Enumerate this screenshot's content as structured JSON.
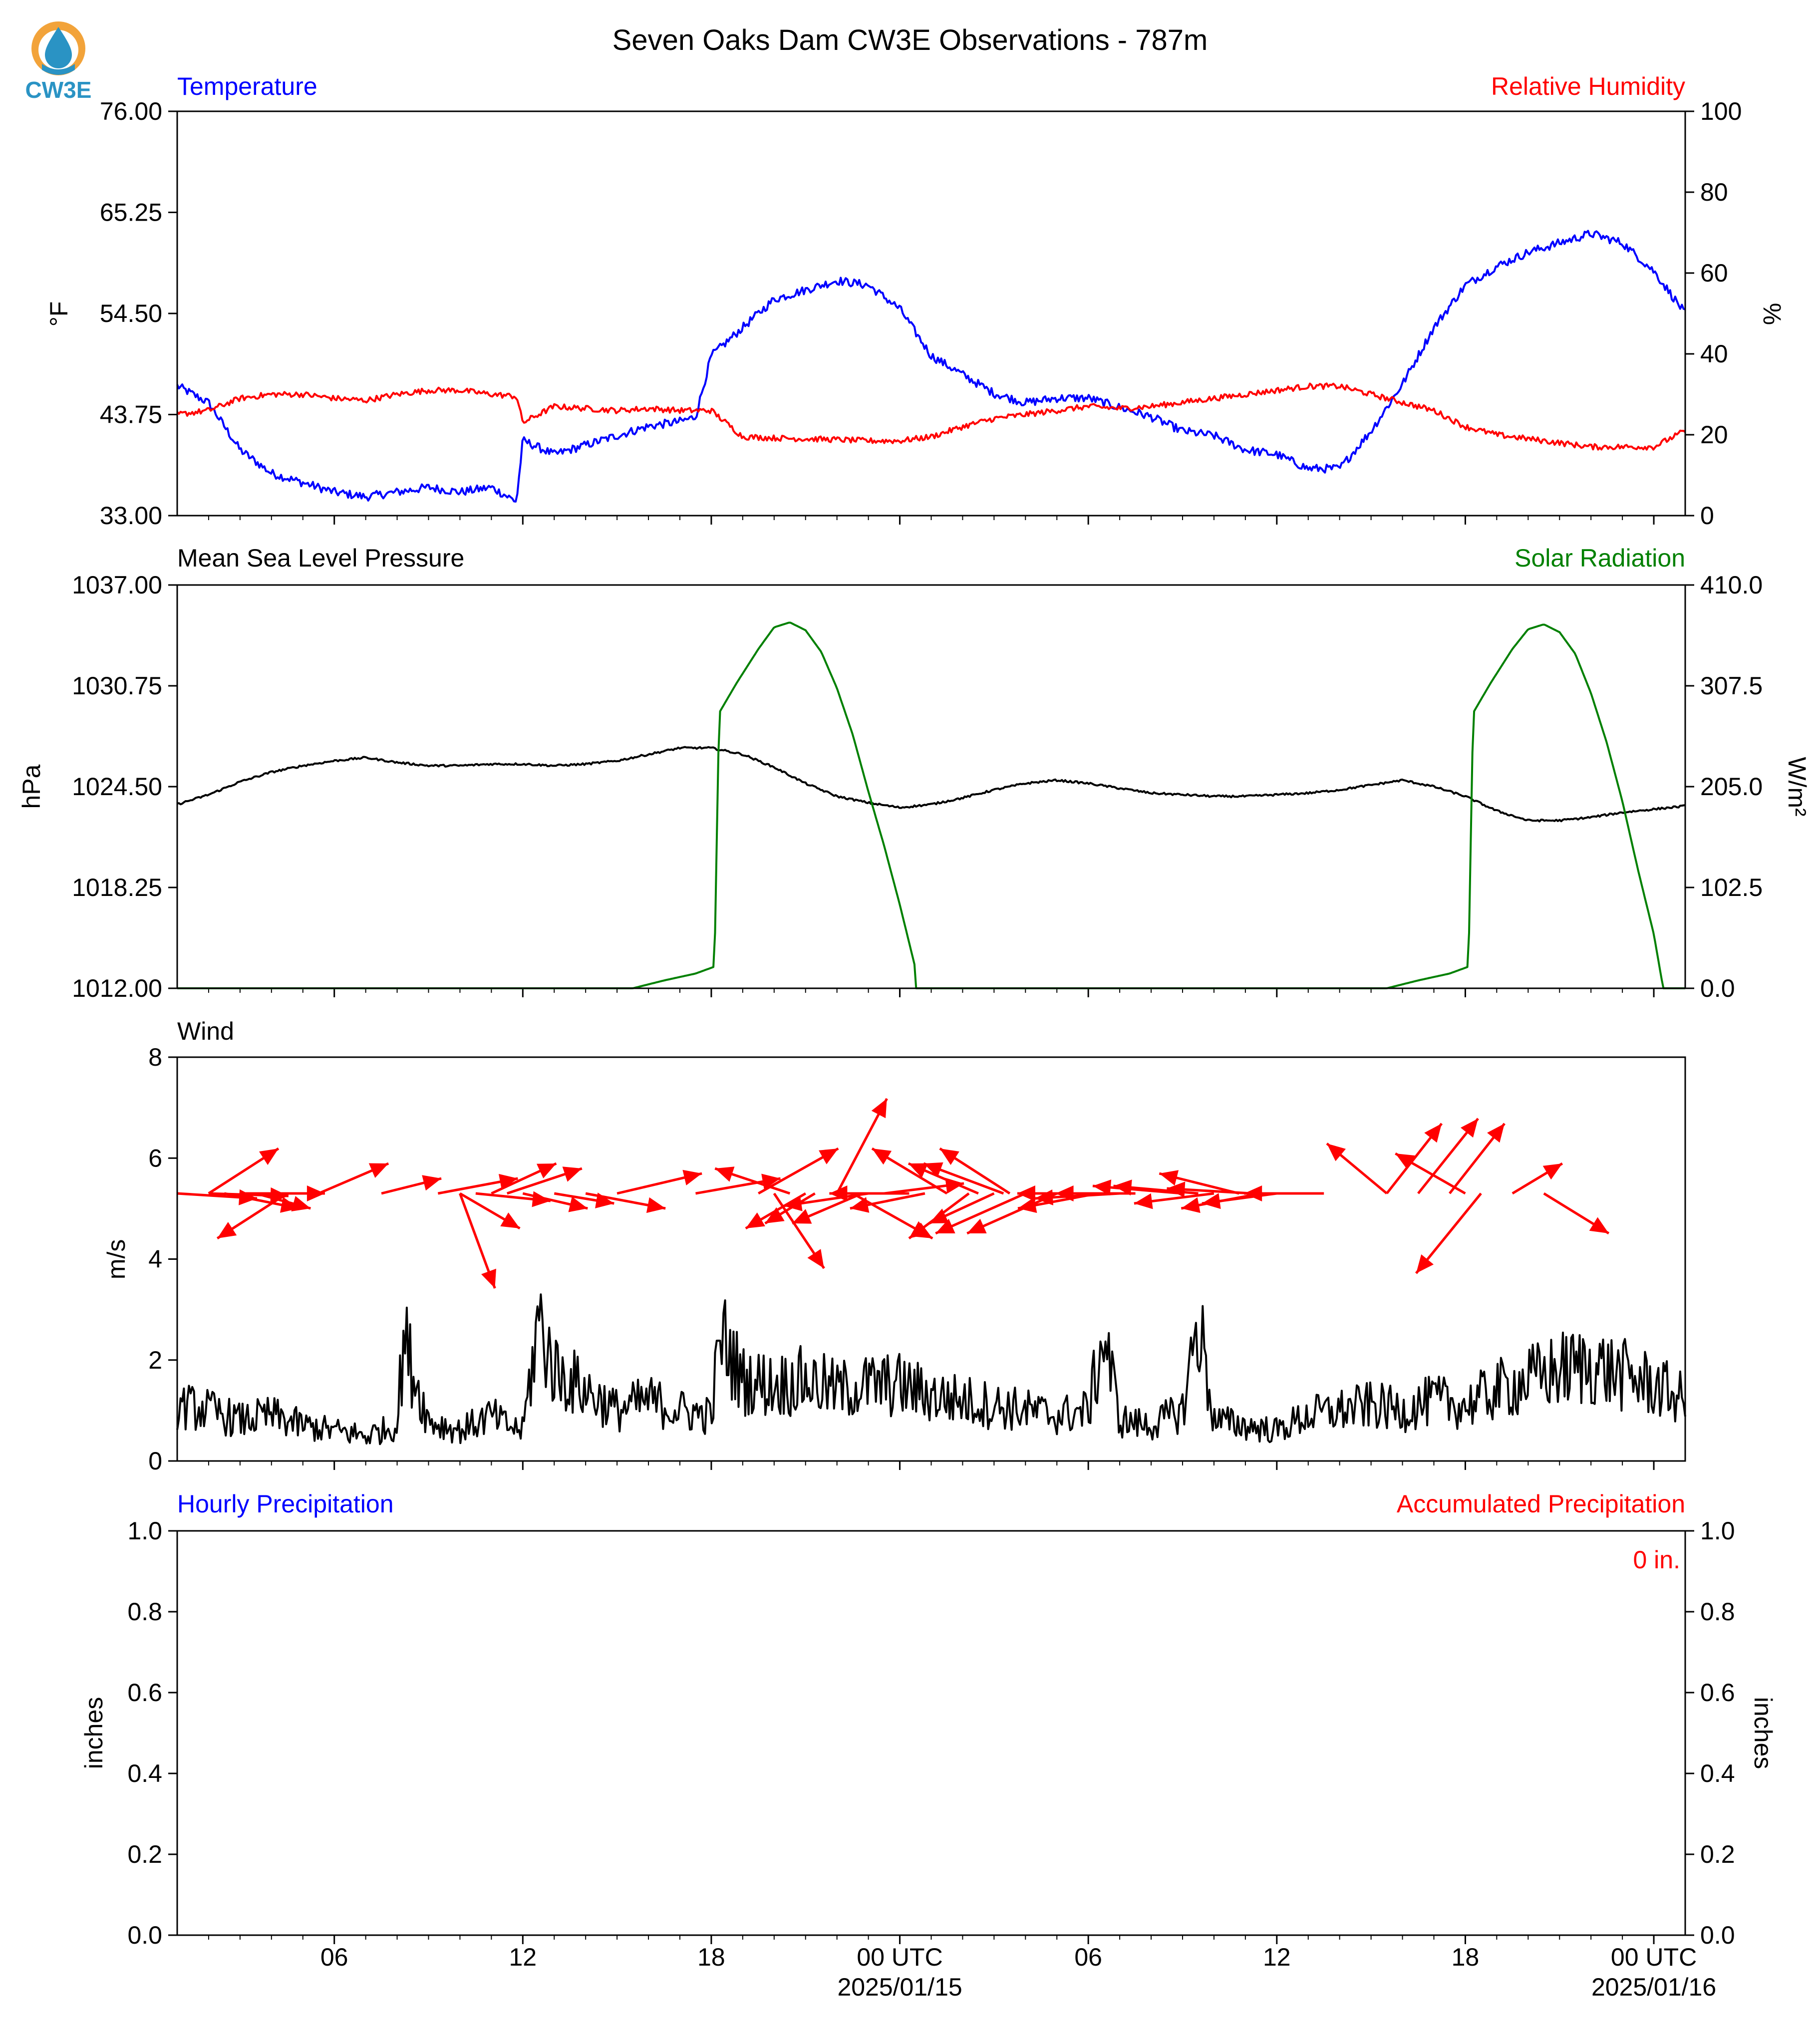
{
  "title": "Seven Oaks Dam CW3E Observations - 787m",
  "logo": {
    "icon": "cw3e-droplet-logo-icon",
    "text": "CW3E",
    "ring_color": "#f2a33a",
    "drop_color": "#2a93c4"
  },
  "colors": {
    "temperature": "#0000ff",
    "humidity": "#ff0000",
    "pressure": "#000000",
    "solar": "#008000",
    "wind": "#ff0000",
    "wind_speed": "#000000",
    "hourly_precip": "#0000ff",
    "accum_precip": "#ff0000"
  },
  "time_axis": {
    "start_hour": 0,
    "end_hour": 48,
    "tick_step_hours": 1,
    "labels": [
      {
        "hour": 5,
        "text": "06"
      },
      {
        "hour": 11,
        "text": "12"
      },
      {
        "hour": 17,
        "text": "18"
      },
      {
        "hour": 23,
        "text": "00 UTC",
        "date": "2025/01/15"
      },
      {
        "hour": 29,
        "text": "06"
      },
      {
        "hour": 35,
        "text": "12"
      },
      {
        "hour": 41,
        "text": "18"
      },
      {
        "hour": 47,
        "text": "00 UTC",
        "date": "2025/01/16"
      }
    ]
  },
  "chart_data": [
    {
      "type": "line",
      "left_title": "Temperature",
      "right_title": "Relative Humidity",
      "ylabel": "°F",
      "ylabel_right": "%",
      "ylim": [
        33,
        76
      ],
      "yticks": [
        "33.00",
        "43.75",
        "54.50",
        "65.25",
        "76.00"
      ],
      "ylim_right": [
        0,
        100
      ],
      "yticks_right": [
        "0",
        "20",
        "40",
        "60",
        "80",
        "100"
      ],
      "series": [
        {
          "name": "Temperature",
          "axis": "left",
          "color": "#0000ff",
          "x": [
            0,
            1,
            2,
            3,
            4,
            5,
            6,
            7,
            8,
            9,
            10,
            10.8,
            11,
            12,
            13,
            14,
            15,
            16,
            16.5,
            17,
            18,
            19,
            20,
            21,
            22,
            23,
            24,
            25,
            26,
            27,
            28,
            29,
            30,
            31,
            32,
            33,
            34,
            35,
            36,
            37,
            38,
            39,
            40,
            41,
            42,
            43,
            44,
            45,
            46,
            47,
            48
          ],
          "y": [
            46.8,
            45,
            40,
            37.5,
            36.5,
            35.5,
            35,
            35.5,
            36,
            35.5,
            36,
            34.5,
            41,
            39.5,
            40.5,
            41.5,
            42.5,
            43,
            43.5,
            50,
            53,
            56,
            57,
            58,
            57.5,
            55,
            50,
            48,
            46,
            45,
            45.5,
            45.5,
            44.5,
            43.5,
            42,
            41.5,
            40,
            39.5,
            38,
            38,
            42,
            47,
            53,
            57.5,
            59.5,
            61,
            62,
            63,
            62,
            59,
            54.5
          ]
        },
        {
          "name": "Relative Humidity",
          "axis": "right",
          "color": "#ff0000",
          "x": [
            0,
            1,
            2,
            3,
            4,
            5,
            6,
            7,
            8,
            9,
            10,
            10.8,
            11,
            12,
            13,
            14,
            15,
            16,
            17,
            18,
            19,
            20,
            21,
            22,
            23,
            24,
            25,
            26,
            27,
            28,
            29,
            30,
            31,
            32,
            33,
            34,
            35,
            36,
            37,
            38,
            39,
            40,
            41,
            42,
            43,
            44,
            45,
            46,
            47,
            48
          ],
          "y": [
            25,
            26,
            29,
            30,
            30,
            29,
            28.5,
            30,
            31,
            31,
            30,
            29.5,
            23,
            27,
            26.5,
            26,
            26.5,
            26,
            26,
            19.5,
            19.2,
            19,
            18.8,
            18.5,
            18.5,
            19.5,
            22,
            24,
            25,
            26,
            27,
            26.5,
            27,
            28,
            29,
            30,
            31,
            32,
            32,
            30,
            28,
            26,
            22,
            20,
            19,
            18,
            17,
            17,
            17,
            21
          ]
        }
      ]
    },
    {
      "type": "line",
      "left_title": "Mean Sea Level Pressure",
      "right_title": "Solar Radiation",
      "ylabel": "hPa",
      "ylabel_right": "W/m²",
      "ylim": [
        1012,
        1037
      ],
      "yticks": [
        "1012.00",
        "1018.25",
        "1024.50",
        "1030.75",
        "1037.00"
      ],
      "ylim_right": [
        0,
        410
      ],
      "yticks_right": [
        "0.0",
        "102.5",
        "205.0",
        "307.5",
        "410.0"
      ],
      "series": [
        {
          "name": "Mean Sea Level Pressure",
          "axis": "left",
          "color": "#000000",
          "x": [
            0,
            1,
            2,
            3,
            4,
            5,
            6,
            7,
            8,
            9,
            10,
            11,
            12,
            13,
            14,
            15,
            16,
            17,
            18,
            19,
            20,
            21,
            22,
            23,
            24,
            25,
            26,
            27,
            28,
            29,
            30,
            31,
            32,
            33,
            34,
            35,
            36,
            37,
            38,
            39,
            40,
            41,
            42,
            43,
            44,
            45,
            46,
            47,
            48
          ],
          "y": [
            1023.4,
            1024,
            1024.8,
            1025.4,
            1025.8,
            1026.1,
            1026.3,
            1026.0,
            1025.8,
            1025.8,
            1025.9,
            1025.9,
            1025.8,
            1025.9,
            1026.1,
            1026.5,
            1026.9,
            1026.9,
            1026.5,
            1025.7,
            1024.7,
            1023.9,
            1023.5,
            1023.2,
            1023.4,
            1023.8,
            1024.3,
            1024.7,
            1024.9,
            1024.7,
            1024.4,
            1024.1,
            1024.0,
            1023.9,
            1023.9,
            1024.0,
            1024.1,
            1024.3,
            1024.6,
            1024.9,
            1024.5,
            1023.9,
            1023.0,
            1022.4,
            1022.4,
            1022.6,
            1022.9,
            1023.1,
            1023.3
          ]
        },
        {
          "name": "Solar Radiation",
          "axis": "right",
          "color": "#008000",
          "x": [
            0,
            14.5,
            15.5,
            16.5,
            17.1,
            17.25,
            17.8,
            18.5,
            19,
            19.5,
            20,
            20.5,
            21,
            21.5,
            22,
            22.5,
            23,
            23.5,
            23.5,
            24,
            38.5,
            39.5,
            40.5,
            41.1,
            41.25,
            41.8,
            42.5,
            43,
            43.5,
            44,
            44.5,
            45,
            45.5,
            46,
            46.5,
            47,
            47.3,
            47.4,
            48
          ],
          "y": [
            0,
            0,
            8,
            15,
            22,
            280,
            310,
            345,
            367,
            372,
            364,
            342,
            305,
            258,
            200,
            145,
            85,
            20,
            0,
            0,
            0,
            8,
            15,
            22,
            280,
            310,
            345,
            365,
            370,
            362,
            340,
            300,
            250,
            190,
            120,
            55,
            0,
            0,
            0
          ]
        }
      ]
    },
    {
      "type": "line",
      "left_title": "Wind",
      "ylabel": "m/s",
      "ylim": [
        0,
        8
      ],
      "yticks": [
        "0",
        "2",
        "4",
        "6",
        "8"
      ],
      "series": [
        {
          "name": "Wind speed",
          "axis": "left",
          "color": "#000000",
          "x": [
            0,
            1,
            2,
            3,
            4,
            5,
            6,
            7,
            7.2,
            8,
            9,
            10,
            10.5,
            11,
            11.5,
            12,
            13,
            14,
            15,
            16,
            17,
            17.3,
            18,
            19,
            20,
            21,
            22,
            23,
            24,
            25,
            26,
            27,
            28,
            29,
            29.5,
            30,
            31,
            32,
            32.5,
            33,
            34,
            35,
            36,
            37,
            38,
            39,
            40,
            41,
            42,
            43,
            44,
            45,
            46,
            47,
            48
          ],
          "y": [
            1.1,
            1.0,
            0.8,
            0.9,
            0.7,
            0.6,
            0.5,
            0.7,
            2.4,
            0.8,
            0.6,
            0.9,
            0.7,
            0.6,
            2.8,
            1.8,
            1.4,
            1.0,
            1.2,
            1.0,
            0.9,
            2.5,
            1.6,
            1.5,
            1.6,
            1.4,
            1.5,
            1.5,
            1.3,
            1.2,
            1.1,
            1.0,
            0.9,
            1.0,
            2.5,
            0.8,
            0.7,
            1.0,
            2.8,
            0.8,
            0.7,
            0.6,
            0.9,
            1.0,
            1.1,
            1.0,
            1.2,
            1.1,
            1.4,
            1.6,
            1.8,
            1.9,
            1.7,
            1.5,
            1.2
          ]
        }
      ],
      "wind_barbs": [
        {
          "hour": 0.0,
          "u": 1.6,
          "v": -0.1
        },
        {
          "hour": 1.0,
          "u": 1.6,
          "v": -0.05
        },
        {
          "hour": 1.0,
          "u": 1.4,
          "v": 0.9
        },
        {
          "hour": 1.5,
          "u": 1.5,
          "v": -0.3
        },
        {
          "hour": 2.0,
          "u": 1.7,
          "v": 0.0
        },
        {
          "hour": 2.5,
          "u": 1.1,
          "v": -0.3
        },
        {
          "hour": 3.5,
          "u": -1.4,
          "v": -0.9
        },
        {
          "hour": 4.5,
          "u": 1.4,
          "v": 0.6
        },
        {
          "hour": 6.5,
          "u": 1.2,
          "v": 0.3
        },
        {
          "hour": 8.3,
          "u": 1.6,
          "v": 0.3
        },
        {
          "hour": 9.5,
          "u": 1.5,
          "v": -0.15
        },
        {
          "hour": 9.0,
          "u": 0.7,
          "v": -1.9
        },
        {
          "hour": 10.0,
          "u": 1.3,
          "v": 0.6
        },
        {
          "hour": 9.0,
          "u": 1.2,
          "v": -0.7
        },
        {
          "hour": 10.5,
          "u": 1.5,
          "v": 0.5
        },
        {
          "hour": 11.0,
          "u": 1.3,
          "v": -0.3
        },
        {
          "hour": 12.0,
          "u": 1.2,
          "v": -0.2
        },
        {
          "hour": 13.0,
          "u": 1.6,
          "v": -0.3
        },
        {
          "hour": 14.0,
          "u": 1.7,
          "v": 0.4
        },
        {
          "hour": 16.5,
          "u": 1.7,
          "v": 0.3
        },
        {
          "hour": 18.5,
          "u": 1.6,
          "v": 0.9
        },
        {
          "hour": 19.0,
          "u": 1.0,
          "v": -1.5
        },
        {
          "hour": 19.5,
          "u": -1.5,
          "v": 0.5
        },
        {
          "hour": 20.0,
          "u": -1.2,
          "v": -0.7
        },
        {
          "hour": 20.3,
          "u": -1.0,
          "v": -0.6
        },
        {
          "hour": 21.0,
          "u": 1.0,
          "v": 1.9
        },
        {
          "hour": 21.5,
          "u": 1.6,
          "v": -0.9
        },
        {
          "hour": 21.8,
          "u": -1.4,
          "v": -0.6
        },
        {
          "hour": 22.0,
          "u": -1.7,
          "v": -0.25
        },
        {
          "hour": 22.5,
          "u": 1.6,
          "v": 0.2
        },
        {
          "hour": 23.3,
          "u": -1.6,
          "v": 0.0
        },
        {
          "hour": 23.8,
          "u": -1.5,
          "v": -0.3
        },
        {
          "hour": 24.5,
          "u": -1.5,
          "v": 0.9
        },
        {
          "hour": 25.2,
          "u": -1.2,
          "v": -0.9
        },
        {
          "hour": 25.5,
          "u": -1.4,
          "v": 0.6
        },
        {
          "hour": 26.0,
          "u": -1.3,
          "v": -0.6
        },
        {
          "hour": 26.3,
          "u": -1.6,
          "v": 0.6
        },
        {
          "hour": 26.5,
          "u": -1.4,
          "v": 0.9
        },
        {
          "hour": 27.0,
          "u": -1.8,
          "v": -0.8
        },
        {
          "hour": 28.0,
          "u": -1.8,
          "v": -0.8
        },
        {
          "hour": 29.3,
          "u": -1.6,
          "v": -0.3
        },
        {
          "hour": 29.6,
          "u": -1.8,
          "v": 0.0
        },
        {
          "hour": 30.0,
          "u": -1.7,
          "v": -0.1
        },
        {
          "hour": 30.5,
          "u": -1.6,
          "v": 0.0
        },
        {
          "hour": 32.0,
          "u": -1.8,
          "v": 0.15
        },
        {
          "hour": 32.5,
          "u": -1.7,
          "v": 0.15
        },
        {
          "hour": 33.0,
          "u": -1.6,
          "v": -0.2
        },
        {
          "hour": 33.8,
          "u": -1.6,
          "v": 0.4
        },
        {
          "hour": 34.2,
          "u": -1.7,
          "v": 0.1
        },
        {
          "hour": 34.5,
          "u": -1.6,
          "v": -0.3
        },
        {
          "hour": 35.0,
          "u": -1.5,
          "v": -0.2
        },
        {
          "hour": 36.5,
          "u": -1.6,
          "v": 0.0
        },
        {
          "hour": 38.5,
          "u": -1.2,
          "v": 1.0
        },
        {
          "hour": 38.5,
          "u": 1.1,
          "v": 1.4
        },
        {
          "hour": 39.5,
          "u": 1.2,
          "v": 1.5
        },
        {
          "hour": 40.5,
          "u": 1.1,
          "v": 1.4
        },
        {
          "hour": 41.0,
          "u": -1.4,
          "v": 0.8
        },
        {
          "hour": 41.5,
          "u": -1.3,
          "v": -1.6
        },
        {
          "hour": 42.5,
          "u": 1.0,
          "v": 0.6
        },
        {
          "hour": 43.5,
          "u": 1.3,
          "v": -0.8
        }
      ]
    },
    {
      "type": "line",
      "left_title": "Hourly Precipitation",
      "right_title": "Accumulated Precipitation",
      "ylabel": "inches",
      "ylabel_right": "inches",
      "ylim": [
        0,
        1
      ],
      "yticks": [
        "0.0",
        "0.2",
        "0.4",
        "0.6",
        "0.8",
        "1.0"
      ],
      "ylim_right": [
        0,
        1
      ],
      "yticks_right": [
        "0.0",
        "0.2",
        "0.4",
        "0.6",
        "0.8",
        "1.0"
      ],
      "total_label": "0 in.",
      "series": [
        {
          "name": "Hourly Precipitation",
          "axis": "left",
          "color": "#0000ff",
          "x": [
            0,
            48
          ],
          "y": [
            0,
            0
          ]
        },
        {
          "name": "Accumulated Precipitation",
          "axis": "right",
          "color": "#ff0000",
          "x": [
            0,
            48
          ],
          "y": [
            0,
            0
          ]
        }
      ]
    }
  ]
}
